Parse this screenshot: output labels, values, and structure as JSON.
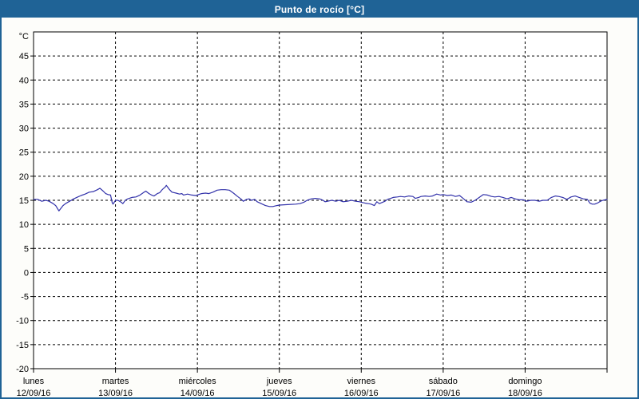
{
  "window": {
    "title": "Punto de rocío [°C]"
  },
  "theme": {
    "accent_blue": "#1f6396",
    "page_bg": "#fdfdfa",
    "plot_bg": "#ffffff",
    "grid_color": "#000000",
    "line_color": "#3232aa",
    "title_text_color": "#ffffff"
  },
  "chart_data": {
    "type": "line",
    "title": "Punto de rocío [°C]",
    "ylabel": "°C",
    "ylim": [
      -20,
      50
    ],
    "ytick_step": 5,
    "ytick_labels": [
      45,
      40,
      35,
      30,
      25,
      20,
      15,
      10,
      5,
      0,
      -5,
      -10,
      -15,
      -20
    ],
    "grid": "dashed",
    "legend": "none",
    "x_axis": {
      "unit": "days",
      "range_days": [
        0,
        7
      ],
      "day_labels": [
        {
          "weekday": "lunes",
          "date": "12/09/16"
        },
        {
          "weekday": "martes",
          "date": "13/09/16"
        },
        {
          "weekday": "miércoles",
          "date": "14/09/16"
        },
        {
          "weekday": "jueves",
          "date": "15/09/16"
        },
        {
          "weekday": "viernes",
          "date": "16/09/16"
        },
        {
          "weekday": "sábado",
          "date": "17/09/16"
        },
        {
          "weekday": "domingo",
          "date": "18/09/16"
        }
      ]
    },
    "series": [
      {
        "name": "Punto de rocío",
        "color": "#3232aa",
        "points_day_value": [
          [
            0.0,
            15.2
          ],
          [
            0.05,
            15.2
          ],
          [
            0.1,
            14.8
          ],
          [
            0.15,
            15.0
          ],
          [
            0.19,
            14.8
          ],
          [
            0.24,
            14.3
          ],
          [
            0.27,
            13.9
          ],
          [
            0.31,
            12.8
          ],
          [
            0.36,
            13.9
          ],
          [
            0.39,
            14.3
          ],
          [
            0.44,
            14.8
          ],
          [
            0.49,
            15.3
          ],
          [
            0.54,
            15.7
          ],
          [
            0.58,
            16.0
          ],
          [
            0.63,
            16.3
          ],
          [
            0.68,
            16.7
          ],
          [
            0.73,
            16.8
          ],
          [
            0.78,
            17.2
          ],
          [
            0.81,
            17.5
          ],
          [
            0.85,
            16.9
          ],
          [
            0.88,
            16.4
          ],
          [
            0.91,
            16.2
          ],
          [
            0.94,
            16.1
          ],
          [
            0.96,
            14.5
          ],
          [
            0.97,
            14.2
          ],
          [
            1.0,
            15.0
          ],
          [
            1.03,
            15.0
          ],
          [
            1.07,
            14.6
          ],
          [
            1.09,
            14.3
          ],
          [
            1.12,
            15.0
          ],
          [
            1.15,
            15.3
          ],
          [
            1.2,
            15.6
          ],
          [
            1.25,
            15.7
          ],
          [
            1.3,
            16.1
          ],
          [
            1.35,
            16.7
          ],
          [
            1.37,
            16.9
          ],
          [
            1.41,
            16.4
          ],
          [
            1.44,
            16.1
          ],
          [
            1.47,
            15.9
          ],
          [
            1.51,
            16.4
          ],
          [
            1.54,
            16.6
          ],
          [
            1.57,
            17.2
          ],
          [
            1.61,
            17.8
          ],
          [
            1.62,
            18.1
          ],
          [
            1.66,
            17.2
          ],
          [
            1.69,
            16.7
          ],
          [
            1.74,
            16.5
          ],
          [
            1.78,
            16.3
          ],
          [
            1.81,
            16.4
          ],
          [
            1.83,
            16.1
          ],
          [
            1.88,
            16.3
          ],
          [
            1.93,
            16.1
          ],
          [
            1.98,
            16.0
          ],
          [
            2.05,
            16.4
          ],
          [
            2.1,
            16.5
          ],
          [
            2.14,
            16.4
          ],
          [
            2.19,
            16.7
          ],
          [
            2.24,
            17.1
          ],
          [
            2.29,
            17.2
          ],
          [
            2.34,
            17.2
          ],
          [
            2.39,
            17.1
          ],
          [
            2.44,
            16.5
          ],
          [
            2.49,
            15.8
          ],
          [
            2.53,
            15.3
          ],
          [
            2.56,
            14.8
          ],
          [
            2.6,
            15.2
          ],
          [
            2.63,
            15.3
          ],
          [
            2.66,
            15.0
          ],
          [
            2.7,
            15.2
          ],
          [
            2.73,
            14.7
          ],
          [
            2.78,
            14.3
          ],
          [
            2.83,
            13.9
          ],
          [
            2.88,
            13.7
          ],
          [
            2.92,
            13.7
          ],
          [
            2.97,
            13.9
          ],
          [
            3.0,
            14.0
          ],
          [
            3.1,
            14.1
          ],
          [
            3.2,
            14.2
          ],
          [
            3.25,
            14.3
          ],
          [
            3.3,
            14.6
          ],
          [
            3.34,
            15.0
          ],
          [
            3.39,
            15.3
          ],
          [
            3.44,
            15.4
          ],
          [
            3.49,
            15.3
          ],
          [
            3.52,
            15.1
          ],
          [
            3.56,
            14.7
          ],
          [
            3.59,
            14.8
          ],
          [
            3.64,
            15.0
          ],
          [
            3.69,
            14.8
          ],
          [
            3.73,
            15.0
          ],
          [
            3.78,
            14.7
          ],
          [
            3.83,
            14.8
          ],
          [
            3.88,
            15.0
          ],
          [
            3.93,
            14.8
          ],
          [
            3.98,
            14.7
          ],
          [
            4.0,
            14.6
          ],
          [
            4.05,
            14.4
          ],
          [
            4.09,
            14.3
          ],
          [
            4.12,
            14.2
          ],
          [
            4.16,
            13.9
          ],
          [
            4.19,
            14.7
          ],
          [
            4.22,
            14.3
          ],
          [
            4.26,
            14.6
          ],
          [
            4.29,
            14.8
          ],
          [
            4.32,
            15.2
          ],
          [
            4.36,
            15.4
          ],
          [
            4.39,
            15.6
          ],
          [
            4.44,
            15.7
          ],
          [
            4.48,
            15.8
          ],
          [
            4.53,
            15.7
          ],
          [
            4.58,
            15.9
          ],
          [
            4.63,
            15.8
          ],
          [
            4.66,
            15.4
          ],
          [
            4.7,
            15.6
          ],
          [
            4.73,
            15.8
          ],
          [
            4.78,
            15.9
          ],
          [
            4.83,
            15.8
          ],
          [
            4.87,
            15.9
          ],
          [
            4.92,
            16.3
          ],
          [
            4.97,
            16.1
          ],
          [
            5.0,
            16.2
          ],
          [
            5.05,
            16.0
          ],
          [
            5.1,
            16.1
          ],
          [
            5.15,
            15.8
          ],
          [
            5.2,
            16.0
          ],
          [
            5.25,
            15.3
          ],
          [
            5.29,
            14.7
          ],
          [
            5.34,
            14.6
          ],
          [
            5.39,
            15.0
          ],
          [
            5.44,
            15.6
          ],
          [
            5.49,
            16.2
          ],
          [
            5.54,
            16.1
          ],
          [
            5.59,
            15.8
          ],
          [
            5.63,
            15.7
          ],
          [
            5.68,
            15.8
          ],
          [
            5.73,
            15.6
          ],
          [
            5.78,
            15.3
          ],
          [
            5.83,
            15.6
          ],
          [
            5.88,
            15.3
          ],
          [
            5.93,
            15.1
          ],
          [
            5.98,
            15.1
          ],
          [
            6.02,
            14.8
          ],
          [
            6.07,
            15.0
          ],
          [
            6.12,
            15.0
          ],
          [
            6.17,
            14.8
          ],
          [
            6.22,
            15.0
          ],
          [
            6.27,
            15.0
          ],
          [
            6.32,
            15.6
          ],
          [
            6.37,
            15.9
          ],
          [
            6.41,
            15.8
          ],
          [
            6.46,
            15.6
          ],
          [
            6.51,
            15.2
          ],
          [
            6.56,
            15.7
          ],
          [
            6.61,
            15.9
          ],
          [
            6.66,
            15.6
          ],
          [
            6.71,
            15.3
          ],
          [
            6.76,
            15.2
          ],
          [
            6.79,
            14.4
          ],
          [
            6.82,
            14.2
          ],
          [
            6.85,
            14.2
          ],
          [
            6.88,
            14.4
          ],
          [
            6.92,
            14.8
          ],
          [
            6.95,
            15.0
          ],
          [
            7.0,
            15.2
          ]
        ]
      }
    ]
  }
}
